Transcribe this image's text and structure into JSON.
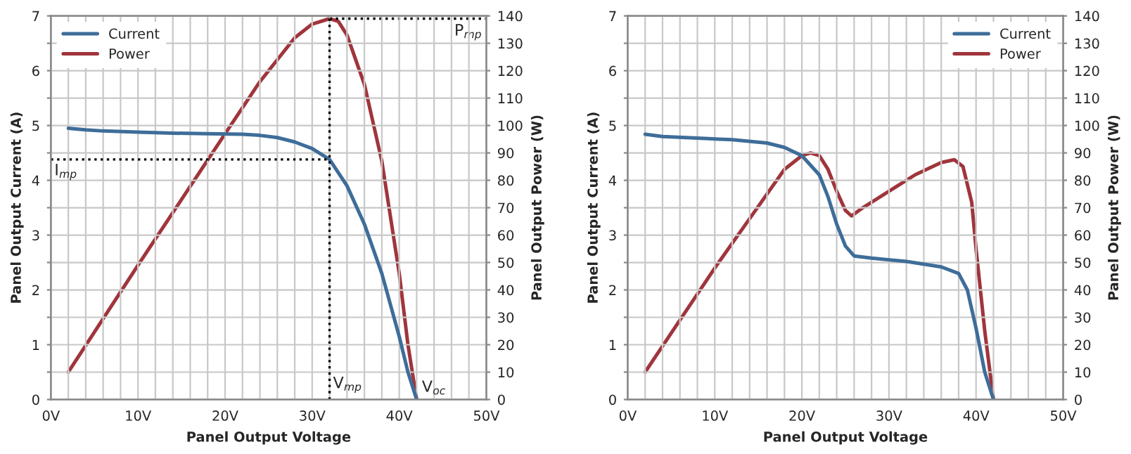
{
  "chart_data": [
    {
      "type": "line",
      "xlabel": "Panel Output Voltage",
      "ylabel": "Panel Output Current (A)",
      "y2label": "Panel Output Power (W)",
      "series": [
        {
          "name": "Current",
          "color": "#3e6d99",
          "x": [
            2,
            4,
            6,
            10,
            14,
            18,
            22,
            24,
            26,
            28,
            30,
            32,
            34,
            36,
            38,
            40,
            41,
            42
          ],
          "values": [
            4.95,
            4.92,
            4.9,
            4.88,
            4.86,
            4.85,
            4.84,
            4.82,
            4.78,
            4.7,
            4.58,
            4.38,
            3.9,
            3.2,
            2.3,
            1.15,
            0.5,
            0
          ]
        },
        {
          "name": "Power",
          "color": "#a0353c",
          "axis": "y2",
          "x": [
            2,
            10,
            20,
            24,
            28,
            30,
            32,
            33,
            34,
            36,
            38,
            40,
            41,
            42
          ],
          "values": [
            10,
            49,
            97,
            116,
            132,
            137,
            139,
            138,
            133,
            115,
            87,
            46,
            20,
            0
          ]
        }
      ],
      "ref_lines": [
        {
          "axis": "x",
          "value": 32,
          "label": "V$_{mp}$",
          "line_style": "dotted",
          "color": "#000000"
        },
        {
          "axis": "y",
          "value": 4.38,
          "label": "I$_{mp}$",
          "line_style": "dotted",
          "color": "#000000"
        },
        {
          "axis": "y2",
          "value": 139,
          "label": "P$_{mp}$",
          "line_style": "dotted",
          "color": "#000000"
        }
      ],
      "annotations": [
        {
          "text": "V$_{oc}$",
          "x": 42,
          "y": 0
        }
      ],
      "xlim": [
        0,
        50
      ],
      "xticks": [
        {
          "value": 0,
          "label": "0V"
        },
        {
          "value": 2,
          "label": null
        },
        {
          "value": 4,
          "label": null
        },
        {
          "value": 6,
          "label": null
        },
        {
          "value": 8,
          "label": null
        },
        {
          "value": 10,
          "label": "10V"
        },
        {
          "value": 12,
          "label": null
        },
        {
          "value": 14,
          "label": null
        },
        {
          "value": 16,
          "label": null
        },
        {
          "value": 18,
          "label": null
        },
        {
          "value": 20,
          "label": "20V"
        },
        {
          "value": 22,
          "label": null
        },
        {
          "value": 24,
          "label": null
        },
        {
          "value": 26,
          "label": null
        },
        {
          "value": 28,
          "label": null
        },
        {
          "value": 30,
          "label": "30V"
        },
        {
          "value": 32,
          "label": null
        },
        {
          "value": 34,
          "label": null
        },
        {
          "value": 36,
          "label": null
        },
        {
          "value": 38,
          "label": null
        },
        {
          "value": 40,
          "label": "40V"
        },
        {
          "value": 42,
          "label": null
        },
        {
          "value": 44,
          "label": null
        },
        {
          "value": 46,
          "label": null
        },
        {
          "value": 48,
          "label": null
        },
        {
          "value": 50,
          "label": "50V"
        }
      ],
      "ylim": [
        0,
        7
      ],
      "yticks": [
        0,
        {
          "value": 0.5,
          "label": null
        },
        1,
        {
          "value": 1.5,
          "label": null
        },
        2,
        {
          "value": 2.5,
          "label": null
        },
        3,
        {
          "value": 3.5,
          "label": null
        },
        4,
        {
          "value": 4.5,
          "label": null
        },
        5,
        {
          "value": 5.5,
          "label": null
        },
        6,
        {
          "value": 6.5,
          "label": null
        },
        7
      ],
      "y2lim": [
        0,
        140
      ],
      "y2ticks": [
        0,
        10,
        20,
        30,
        40,
        50,
        60,
        70,
        80,
        90,
        100,
        110,
        120,
        130,
        140
      ],
      "grid": true,
      "legend": "top left"
    },
    {
      "type": "line",
      "xlabel": "Panel Output Voltage",
      "ylabel": "Panel Output Current (A)",
      "y2label": "Panel Output Power (W)",
      "series": [
        {
          "name": "Current",
          "color": "#3e6d99",
          "x": [
            2,
            4,
            8,
            12,
            16,
            18,
            20,
            22,
            23,
            24,
            25,
            26,
            28,
            32,
            36,
            38,
            39,
            40,
            41,
            42
          ],
          "values": [
            4.84,
            4.8,
            4.77,
            4.74,
            4.68,
            4.6,
            4.45,
            4.1,
            3.7,
            3.2,
            2.8,
            2.62,
            2.58,
            2.52,
            2.42,
            2.3,
            2.0,
            1.3,
            0.5,
            0
          ]
        },
        {
          "name": "Power",
          "color": "#a0353c",
          "axis": "y2",
          "x": [
            2,
            6,
            10,
            14,
            18,
            20,
            21,
            22,
            23,
            24,
            25,
            25.7,
            27,
            30,
            33,
            36,
            37.5,
            38.5,
            39.5,
            40,
            41,
            42
          ],
          "values": [
            10,
            29,
            48,
            66,
            84,
            89,
            90,
            89,
            84,
            76,
            69,
            67,
            70,
            76,
            82,
            86.5,
            87.5,
            85,
            72,
            55,
            25,
            0
          ]
        }
      ],
      "xlim": [
        0,
        50
      ],
      "xticks": [
        {
          "value": 0,
          "label": "0V"
        },
        {
          "value": 2,
          "label": null
        },
        {
          "value": 4,
          "label": null
        },
        {
          "value": 6,
          "label": null
        },
        {
          "value": 8,
          "label": null
        },
        {
          "value": 10,
          "label": "10V"
        },
        {
          "value": 12,
          "label": null
        },
        {
          "value": 14,
          "label": null
        },
        {
          "value": 16,
          "label": null
        },
        {
          "value": 18,
          "label": null
        },
        {
          "value": 20,
          "label": "20V"
        },
        {
          "value": 22,
          "label": null
        },
        {
          "value": 24,
          "label": null
        },
        {
          "value": 26,
          "label": null
        },
        {
          "value": 28,
          "label": null
        },
        {
          "value": 30,
          "label": "30V"
        },
        {
          "value": 32,
          "label": null
        },
        {
          "value": 34,
          "label": null
        },
        {
          "value": 36,
          "label": null
        },
        {
          "value": 38,
          "label": null
        },
        {
          "value": 40,
          "label": "40V"
        },
        {
          "value": 42,
          "label": null
        },
        {
          "value": 44,
          "label": null
        },
        {
          "value": 46,
          "label": null
        },
        {
          "value": 48,
          "label": null
        },
        {
          "value": 50,
          "label": "50V"
        }
      ],
      "ylim": [
        0,
        7
      ],
      "yticks": [
        0,
        {
          "value": 0.5,
          "label": null
        },
        1,
        {
          "value": 1.5,
          "label": null
        },
        2,
        {
          "value": 2.5,
          "label": null
        },
        3,
        {
          "value": 3.5,
          "label": null
        },
        4,
        {
          "value": 4.5,
          "label": null
        },
        5,
        {
          "value": 5.5,
          "label": null
        },
        6,
        {
          "value": 6.5,
          "label": null
        },
        7
      ],
      "y2lim": [
        0,
        140
      ],
      "y2ticks": [
        0,
        10,
        20,
        30,
        40,
        50,
        60,
        70,
        80,
        90,
        100,
        110,
        120,
        130,
        140
      ],
      "grid": true,
      "legend": "top right"
    }
  ]
}
